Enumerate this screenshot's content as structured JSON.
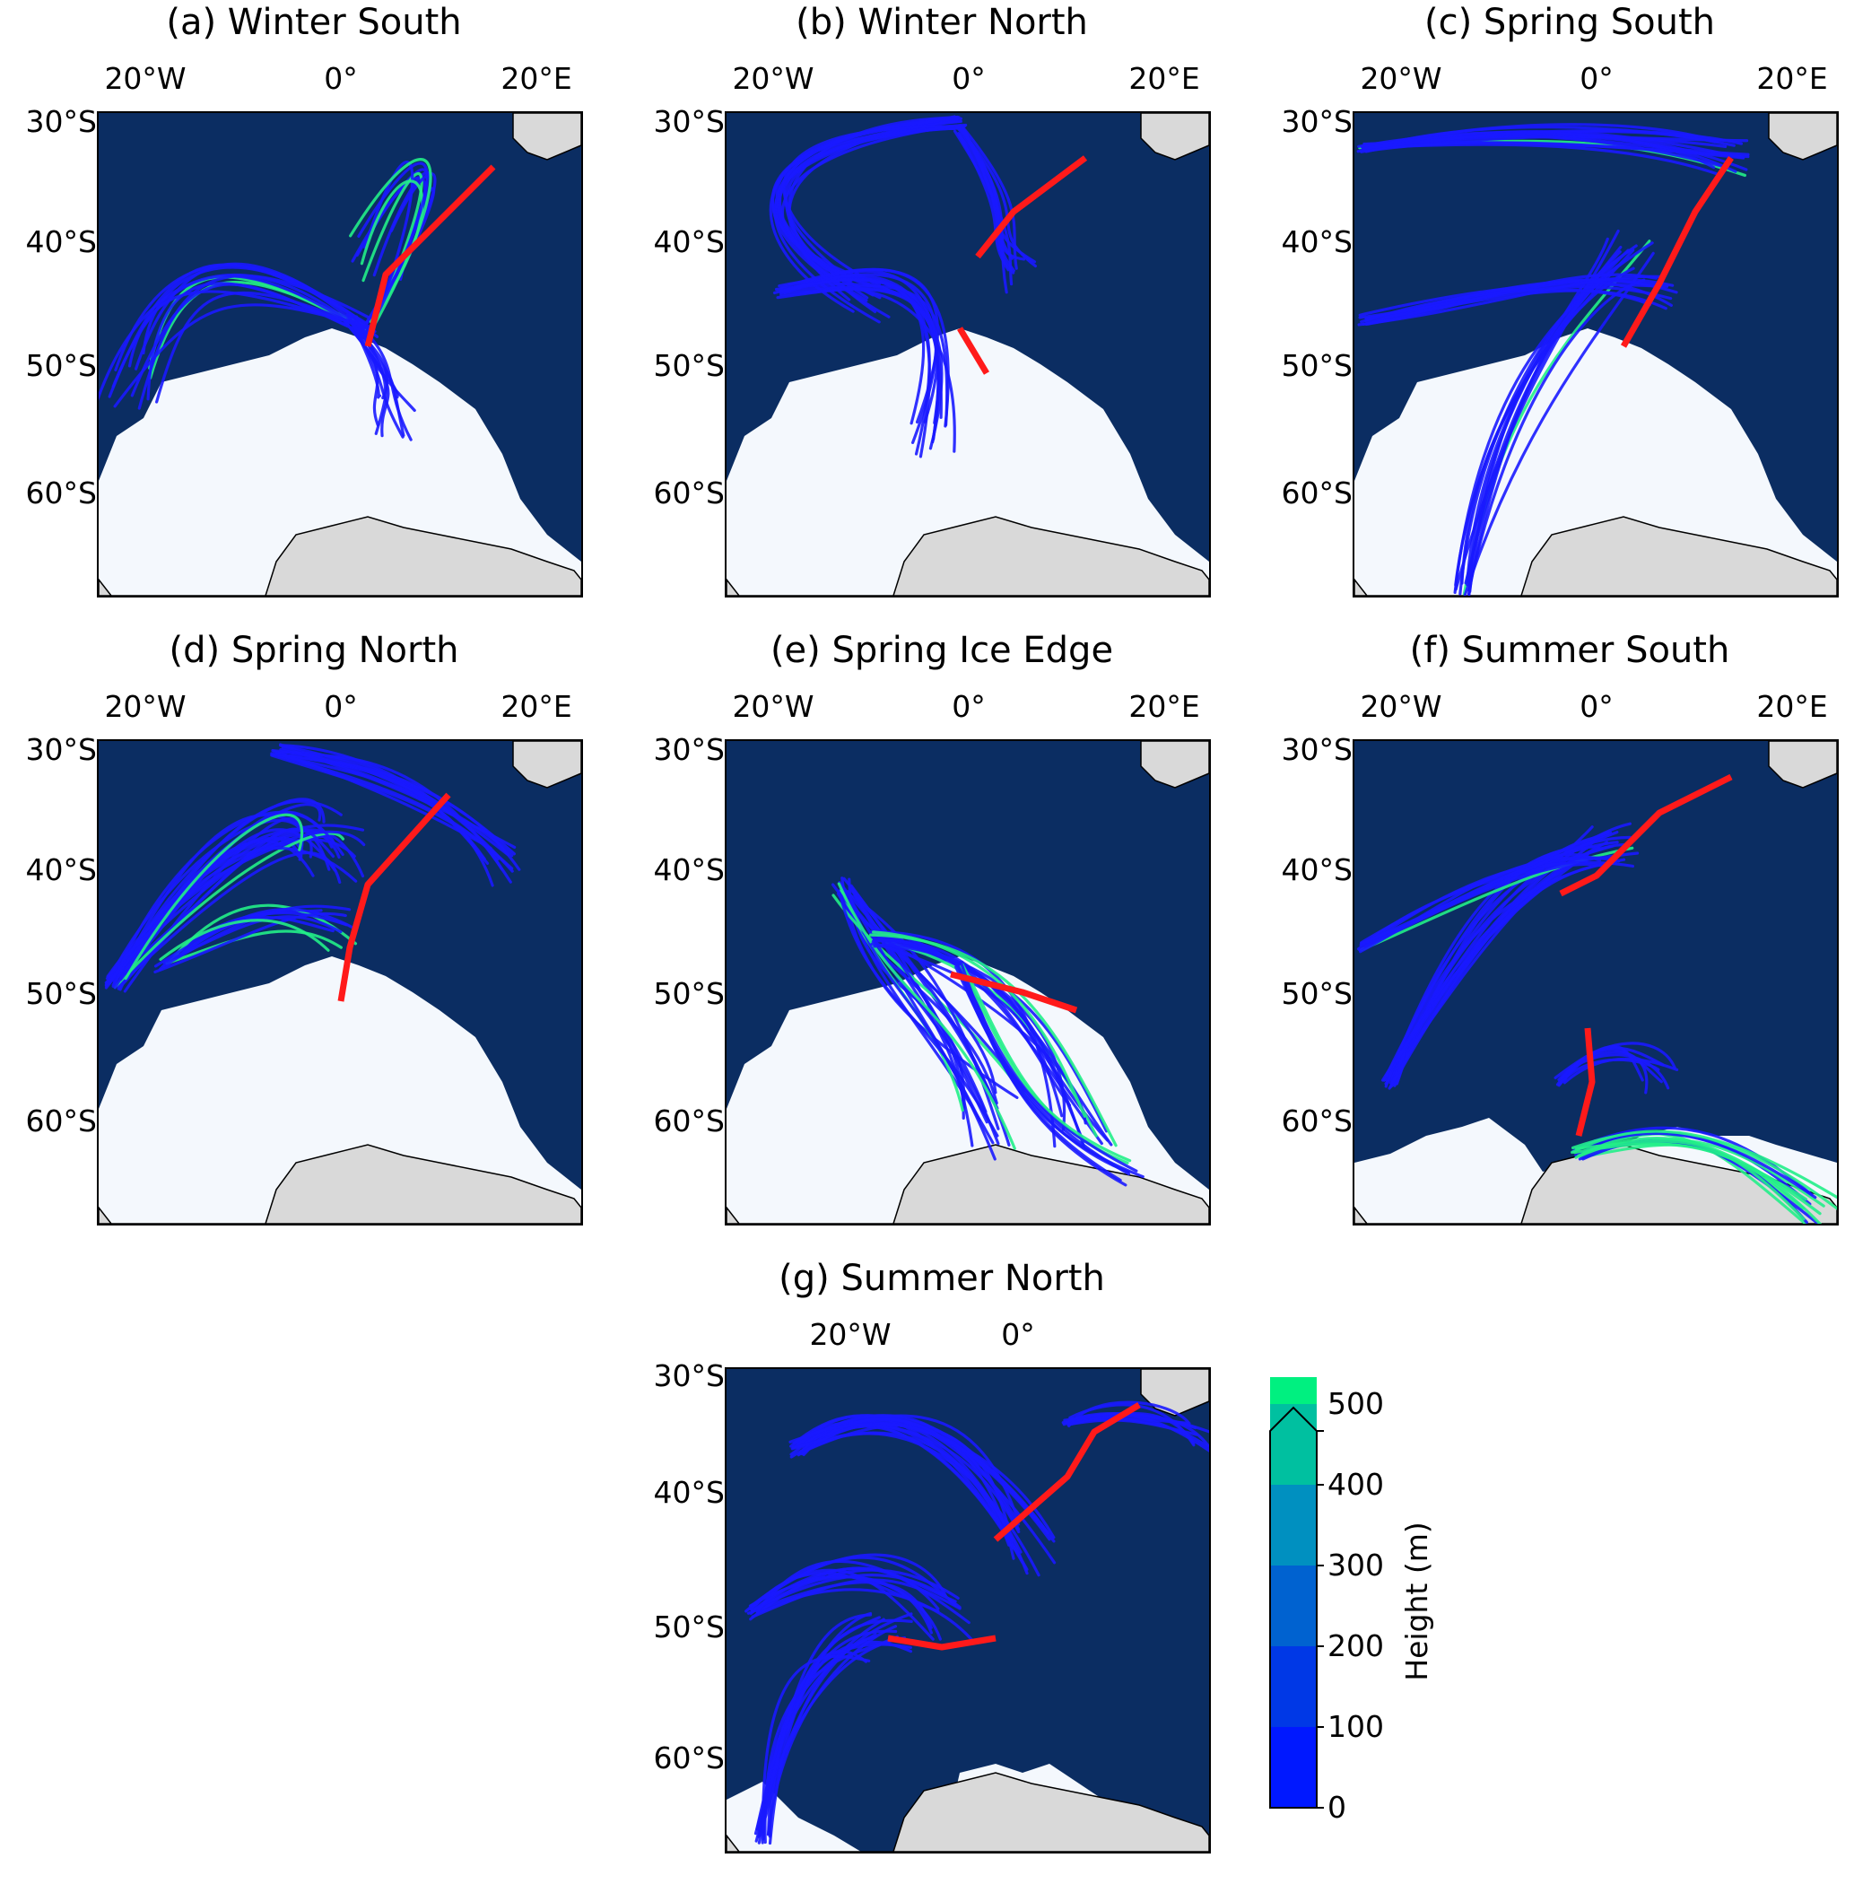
{
  "panels": [
    {
      "id": "a",
      "title": "(a) Winter South",
      "lon_labels": [
        "20°W",
        "0°",
        "20°E"
      ],
      "lat_labels": [
        "30°S",
        "40°S",
        "50°S",
        "60°S"
      ]
    },
    {
      "id": "b",
      "title": "(b) Winter North",
      "lon_labels": [
        "20°W",
        "0°",
        "20°E"
      ],
      "lat_labels": [
        "30°S",
        "40°S",
        "50°S",
        "60°S"
      ]
    },
    {
      "id": "c",
      "title": "(c) Spring South",
      "lon_labels": [
        "20°W",
        "0°",
        "20°E"
      ],
      "lat_labels": [
        "30°S",
        "40°S",
        "50°S",
        "60°S"
      ]
    },
    {
      "id": "d",
      "title": "(d) Spring North",
      "lon_labels": [
        "20°W",
        "0°",
        "20°E"
      ],
      "lat_labels": [
        "30°S",
        "40°S",
        "50°S",
        "60°S"
      ]
    },
    {
      "id": "e",
      "title": "(e) Spring Ice Edge",
      "lon_labels": [
        "20°W",
        "0°",
        "20°E"
      ],
      "lat_labels": [
        "30°S",
        "40°S",
        "50°S",
        "60°S"
      ]
    },
    {
      "id": "f",
      "title": "(f) Summer South",
      "lon_labels": [
        "20°W",
        "0°",
        "20°E"
      ],
      "lat_labels": [
        "30°S",
        "40°S",
        "50°S",
        "60°S"
      ]
    },
    {
      "id": "g",
      "title": "(g) Summer North",
      "lon_labels": [
        "20°W",
        "0°"
      ],
      "lat_labels": [
        "30°S",
        "40°S",
        "50°S",
        "60°S"
      ]
    }
  ],
  "colorbar": {
    "label": "Height (m)",
    "ticks": [
      "0",
      "100",
      "200",
      "300",
      "400",
      "500"
    ],
    "colors": [
      "#0018ff",
      "#0038e6",
      "#0062d0",
      "#0090c0",
      "#00c0a0",
      "#00f080"
    ],
    "extend": "max"
  },
  "colors": {
    "ocean": "#0b2d62",
    "sea_ice": "#f4f8fd",
    "land": "#d9d9d9",
    "trajectory": "#1a1aff",
    "source": "#ff1a1a",
    "high_trajectory": "#22ee88"
  }
}
